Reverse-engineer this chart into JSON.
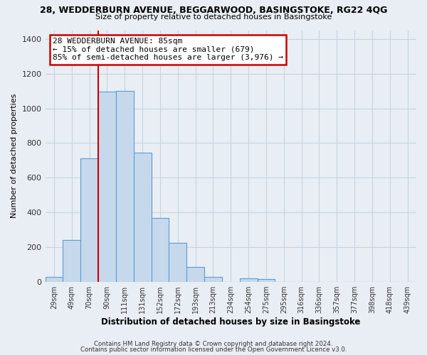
{
  "title_line1": "28, WEDDERBURN AVENUE, BEGGARWOOD, BASINGSTOKE, RG22 4QG",
  "title_line2": "Size of property relative to detached houses in Basingstoke",
  "xlabel": "Distribution of detached houses by size in Basingstoke",
  "ylabel": "Number of detached properties",
  "bar_labels": [
    "29sqm",
    "49sqm",
    "70sqm",
    "90sqm",
    "111sqm",
    "131sqm",
    "152sqm",
    "172sqm",
    "193sqm",
    "213sqm",
    "234sqm",
    "254sqm",
    "275sqm",
    "295sqm",
    "316sqm",
    "336sqm",
    "357sqm",
    "377sqm",
    "398sqm",
    "418sqm",
    "439sqm"
  ],
  "bar_values": [
    30,
    240,
    710,
    1095,
    1100,
    745,
    370,
    225,
    85,
    30,
    0,
    20,
    15,
    0,
    0,
    0,
    0,
    0,
    0,
    0,
    0
  ],
  "bar_fill_color": "#c6d9ec",
  "bar_edge_color": "#5b9bd5",
  "vline_x_index": 3,
  "ylim": [
    0,
    1450
  ],
  "yticks": [
    0,
    200,
    400,
    600,
    800,
    1000,
    1200,
    1400
  ],
  "annotation_line1": "28 WEDDERBURN AVENUE: 85sqm",
  "annotation_line2": "← 15% of detached houses are smaller (679)",
  "annotation_line3": "85% of semi-detached houses are larger (3,976) →",
  "footer_line1": "Contains HM Land Registry data © Crown copyright and database right 2024.",
  "footer_line2": "Contains public sector information licensed under the Open Government Licence v3.0.",
  "background_color": "#e8eef4",
  "plot_bg_color": "#e8eef4",
  "grid_color": "#c8d4e0",
  "vline_color": "#cc0000",
  "annotation_box_edge_color": "#cc0000",
  "annotation_box_face_color": "#ffffff",
  "title_color": "#000000",
  "axis_label_color": "#000000",
  "tick_label_color": "#333333"
}
